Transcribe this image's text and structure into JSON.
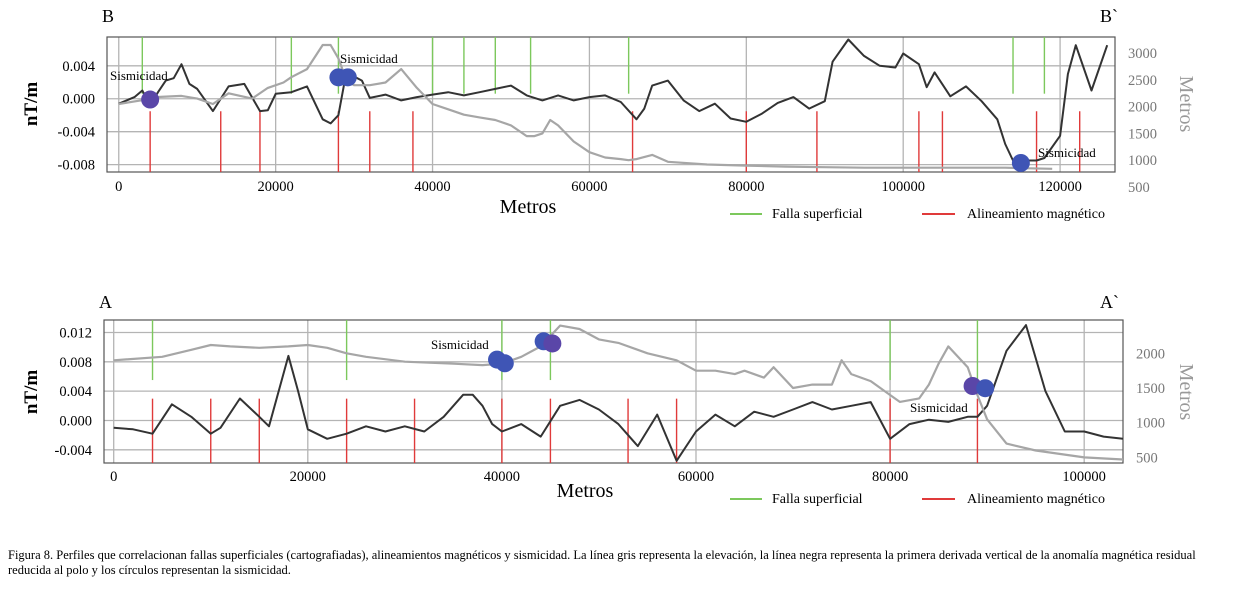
{
  "colors": {
    "magnetic_line": "#333333",
    "elevation_line": "#a6a6a6",
    "fault": "#7cc85c",
    "alignment": "#e03a3a",
    "seismicity": [
      "#3f55b5",
      "#5a46a8"
    ],
    "grid": "#b4b4b4"
  },
  "chart_data": [
    {
      "type": "line",
      "profile_start": "B",
      "profile_end": "B`",
      "xlabel": "Metros",
      "ylabel_left": "nT/m",
      "ylabel_right": "Metros",
      "xlim": [
        -1500,
        127000
      ],
      "xticks": [
        "0",
        "20000",
        "40000",
        "60000",
        "80000",
        "100000",
        "120000"
      ],
      "xtick_values": [
        0,
        20000,
        40000,
        60000,
        80000,
        100000,
        120000
      ],
      "ylim_left": [
        -0.0089,
        0.0075
      ],
      "yticks_left": [
        "0.004",
        "0.000",
        "-0.004",
        "-0.008"
      ],
      "ytick_values_left": [
        0.004,
        0.0,
        -0.004,
        -0.008
      ],
      "ylim_right": [
        780,
        3300
      ],
      "yticks_right": [
        "3000",
        "2500",
        "2000",
        "1500",
        "1000",
        "500"
      ],
      "ytick_values_right": [
        3000,
        2500,
        2000,
        1500,
        1000,
        500
      ],
      "series": [
        {
          "axis": "left",
          "role": "magnetic",
          "x": [
            0,
            2000,
            3000,
            4000,
            5000,
            6000,
            7000,
            8000,
            9000,
            10000,
            12000,
            14000,
            16000,
            18000,
            19000,
            20000,
            22000,
            24000,
            26000,
            27000,
            28000,
            29000,
            31000,
            32000,
            34000,
            36000,
            38000,
            40000,
            42000,
            44000,
            46000,
            48000,
            50000,
            52000,
            54000,
            56000,
            58000,
            60000,
            62000,
            64000,
            66000,
            67000,
            68000,
            70000,
            72000,
            74000,
            76000,
            78000,
            80000,
            82000,
            84000,
            86000,
            88000,
            90000,
            91000,
            93000,
            95000,
            97000,
            99000,
            100000,
            102000,
            103000,
            104000,
            106000,
            108000,
            110000,
            112000,
            113000,
            114000,
            115000,
            116000,
            117000,
            118000,
            120000,
            121000,
            122000,
            124000,
            126000
          ],
          "values": [
            -0.0006,
            0.0002,
            0.001,
            -0.0008,
            0.0008,
            0.0022,
            0.0025,
            0.0042,
            0.0018,
            0.0012,
            -0.0015,
            0.0015,
            0.0018,
            -0.0015,
            -0.0014,
            0.0006,
            0.0008,
            0.0015,
            -0.0025,
            -0.003,
            -0.002,
            0.0032,
            0.0022,
            0.0001,
            0.0005,
            -0.0002,
            0.0002,
            0.0005,
            0.0008,
            0.0004,
            0.0008,
            0.0012,
            0.0016,
            0.0004,
            -0.0002,
            0.0004,
            -0.0002,
            0.0002,
            0.0004,
            -0.0004,
            -0.0025,
            -0.0012,
            0.0016,
            0.0022,
            -0.0002,
            -0.0015,
            -0.0006,
            -0.0024,
            -0.0028,
            -0.0018,
            -0.0005,
            0.0002,
            -0.0012,
            -0.0003,
            0.0045,
            0.0072,
            0.0052,
            0.004,
            0.0038,
            0.0055,
            0.0042,
            0.0014,
            0.0032,
            0.0003,
            0.0015,
            -0.0003,
            -0.0025,
            -0.0055,
            -0.0075,
            -0.0083,
            -0.0075,
            -0.0075,
            -0.0072,
            -0.0045,
            0.003,
            0.0065,
            0.001,
            0.0065
          ],
          "name": ""
        },
        {
          "axis": "right",
          "role": "elevation",
          "x": [
            0,
            3000,
            5000,
            8000,
            10000,
            12000,
            14000,
            17000,
            19000,
            21000,
            22000,
            24000,
            26000,
            27000,
            28000,
            29000,
            30000,
            32000,
            34000,
            36000,
            38000,
            40000,
            42000,
            44000,
            46000,
            48000,
            50000,
            52000,
            53000,
            54000,
            55000,
            56000,
            58000,
            60000,
            62000,
            64000,
            65000,
            66000,
            68000,
            70000,
            75000,
            80000,
            85000,
            90000,
            95000,
            100000,
            105000,
            110000,
            113000,
            116000,
            119000
          ],
          "values": [
            2050,
            2120,
            2180,
            2200,
            2150,
            2050,
            2250,
            2150,
            2350,
            2450,
            2550,
            2700,
            3150,
            3150,
            2900,
            2500,
            2400,
            2400,
            2450,
            2700,
            2350,
            2050,
            1950,
            1850,
            1800,
            1750,
            1650,
            1450,
            1450,
            1500,
            1750,
            1650,
            1350,
            1150,
            1050,
            1020,
            1000,
            1020,
            1100,
            970,
            920,
            900,
            880,
            870,
            860,
            860,
            860,
            860,
            860,
            850,
            840
          ],
          "name": ""
        }
      ],
      "fallas_superficiales_x": [
        3000,
        22000,
        28000,
        40000,
        44000,
        48000,
        52500,
        65000,
        114000,
        118000
      ],
      "alineamientos_magneticos_x": [
        4000,
        13000,
        18000,
        28000,
        32000,
        37500,
        65500,
        80000,
        89000,
        102000,
        105000,
        117000,
        122500
      ],
      "sismicidad_label": "Sismicidad",
      "sismicidad": [
        {
          "x": 4000,
          "y": -0.0001,
          "tone": 1
        },
        {
          "x": 28000,
          "y": 0.0026,
          "tone": 0
        },
        {
          "x": 29200,
          "y": 0.0026,
          "tone": 0
        },
        {
          "x": 115000,
          "y": -0.0078,
          "tone": 0
        }
      ],
      "legend": {
        "fault": "Falla superficial",
        "alignment": "Alineamiento magnético"
      }
    },
    {
      "type": "line",
      "profile_start": "A",
      "profile_end": "A`",
      "xlabel": "Metros",
      "ylabel_left": "nT/m",
      "ylabel_right": "Metros",
      "xlim": [
        -1000,
        104000
      ],
      "xticks": [
        "0",
        "20000",
        "40000",
        "60000",
        "80000",
        "100000"
      ],
      "xtick_values": [
        0,
        20000,
        40000,
        60000,
        80000,
        100000
      ],
      "ylim_left": [
        -0.0058,
        0.0137
      ],
      "yticks_left": [
        "0.012",
        "0.008",
        "0.004",
        "0.000",
        "-0.004"
      ],
      "ytick_values_left": [
        0.012,
        0.008,
        0.004,
        0.0,
        -0.004
      ],
      "ylim_right": [
        420,
        2480
      ],
      "yticks_right": [
        "2000",
        "1500",
        "1000",
        "500"
      ],
      "ytick_values_right": [
        2000,
        1500,
        1000,
        500
      ],
      "series": [
        {
          "axis": "left",
          "role": "magnetic",
          "x": [
            0,
            2000,
            4000,
            6000,
            8000,
            10000,
            11000,
            13000,
            15000,
            16000,
            18000,
            19000,
            20000,
            22000,
            24000,
            26000,
            28000,
            30000,
            32000,
            34000,
            36000,
            37000,
            38000,
            39000,
            40000,
            42000,
            44000,
            46000,
            48000,
            50000,
            52000,
            54000,
            56000,
            58000,
            60000,
            62000,
            64000,
            66000,
            68000,
            70000,
            72000,
            74000,
            76000,
            78000,
            80000,
            82000,
            84000,
            86000,
            88000,
            89000,
            90000,
            92000,
            94000,
            96000,
            98000,
            100000,
            102000,
            104000
          ],
          "values": [
            -0.001,
            -0.0012,
            -0.0018,
            0.0022,
            0.0005,
            -0.0018,
            -0.001,
            0.003,
            0.0005,
            -0.0008,
            0.0088,
            0.004,
            -0.0012,
            -0.0025,
            -0.0018,
            -0.0008,
            -0.0015,
            -0.0008,
            -0.0015,
            0.0005,
            0.0035,
            0.0035,
            0.002,
            -0.0005,
            -0.0015,
            -0.0005,
            -0.0022,
            0.002,
            0.0028,
            0.0015,
            -0.0005,
            -0.0035,
            0.0008,
            -0.0055,
            -0.0015,
            0.0008,
            -0.0008,
            0.0012,
            0.0005,
            0.0015,
            0.0025,
            0.0015,
            0.002,
            0.0025,
            -0.0025,
            -0.0005,
            0.0001,
            -0.0002,
            0.0005,
            0.0005,
            0.002,
            0.0095,
            0.013,
            0.004,
            -0.0015,
            -0.0015,
            -0.0022,
            -0.0025
          ],
          "name": ""
        },
        {
          "axis": "right",
          "role": "elevation",
          "x": [
            0,
            5000,
            8000,
            10000,
            12000,
            15000,
            18000,
            20000,
            22000,
            24000,
            26000,
            30000,
            35000,
            38000,
            40000,
            42000,
            44000,
            46000,
            48000,
            50000,
            52000,
            55000,
            58000,
            60000,
            62000,
            64000,
            65000,
            67000,
            68000,
            70000,
            72000,
            74000,
            75000,
            76000,
            78000,
            80000,
            81000,
            83000,
            84000,
            85000,
            86000,
            88000,
            89000,
            90000,
            92000,
            95000,
            100000,
            104000
          ],
          "values": [
            1900,
            1950,
            2050,
            2120,
            2100,
            2080,
            2100,
            2120,
            2080,
            2000,
            1950,
            1880,
            1850,
            1830,
            1850,
            1950,
            2100,
            2400,
            2350,
            2200,
            2150,
            2000,
            1900,
            1750,
            1750,
            1700,
            1750,
            1650,
            1800,
            1500,
            1550,
            1550,
            1900,
            1700,
            1600,
            1400,
            1300,
            1350,
            1550,
            1850,
            2100,
            1800,
            1400,
            1050,
            700,
            600,
            500,
            470
          ],
          "name": ""
        }
      ],
      "fallas_superficiales_x": [
        4000,
        24000,
        40000,
        45000,
        80000,
        89000
      ],
      "alineamientos_magneticos_x": [
        4000,
        10000,
        15000,
        24000,
        31000,
        40000,
        45000,
        53000,
        58000,
        80000,
        89000
      ],
      "sismicidad_label": "Sismicidad",
      "sismicidad": [
        {
          "x": 39500,
          "y": 0.0083,
          "tone": 0
        },
        {
          "x": 40300,
          "y": 0.0078,
          "tone": 0
        },
        {
          "x": 44300,
          "y": 0.0108,
          "tone": 0
        },
        {
          "x": 45200,
          "y": 0.0105,
          "tone": 1
        },
        {
          "x": 88500,
          "y": 0.0047,
          "tone": 1
        },
        {
          "x": 89800,
          "y": 0.0044,
          "tone": 0
        }
      ],
      "legend": {
        "fault": "Falla superficial",
        "alignment": "Alineamiento magnético"
      }
    }
  ],
  "caption": "Figura 8. Perfiles que correlacionan fallas superficiales (cartografiadas), alineamientos magnéticos y sismicidad. La línea gris representa la elevación, la línea negra representa la primera derivada vertical de la anomalía magnética residual reducida al polo y los círculos representan la sismicidad."
}
